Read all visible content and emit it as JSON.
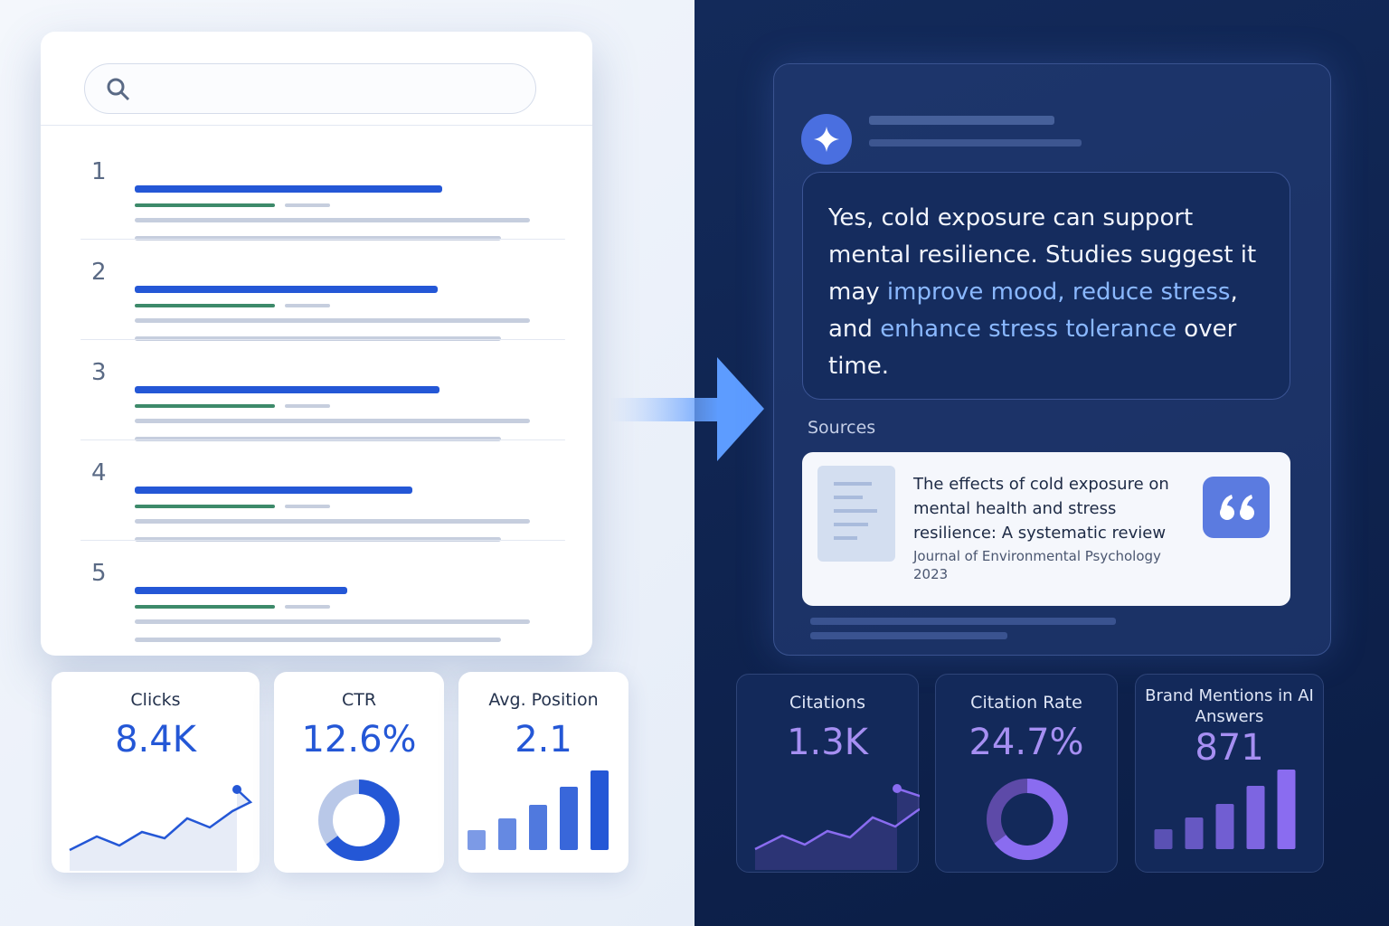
{
  "results": [
    {
      "rank": 1
    },
    {
      "rank": 2
    },
    {
      "rank": 3
    },
    {
      "rank": 4
    },
    {
      "rank": 5
    }
  ],
  "answer": {
    "segments": [
      {
        "text": "Yes, cold exposure can support mental resilience. Studies suggest it may ",
        "highlight": false
      },
      {
        "text": "improve mood, reduce stress",
        "highlight": true
      },
      {
        "text": ", and ",
        "highlight": false
      },
      {
        "text": "enhance stress tolerance",
        "highlight": true
      },
      {
        "text": " over time.",
        "highlight": false
      }
    ]
  },
  "sources": {
    "heading": "Sources",
    "items": [
      {
        "title": "The effects of cold exposure on mental health and stress resilience: A systematic review",
        "journal": "Journal of Environmental Psychology",
        "year": "2023"
      }
    ]
  },
  "search_metrics": [
    {
      "label": "Clicks",
      "value": "8.4K"
    },
    {
      "label": "CTR",
      "value": "12.6%"
    },
    {
      "label": "Avg. Position",
      "value": "2.1"
    }
  ],
  "ai_metrics": [
    {
      "label": "Citations",
      "value": "1.3K"
    },
    {
      "label": "Citation Rate",
      "value": "24.7%"
    },
    {
      "label": "Brand Mentions in AI Answers",
      "value": "871"
    }
  ]
}
